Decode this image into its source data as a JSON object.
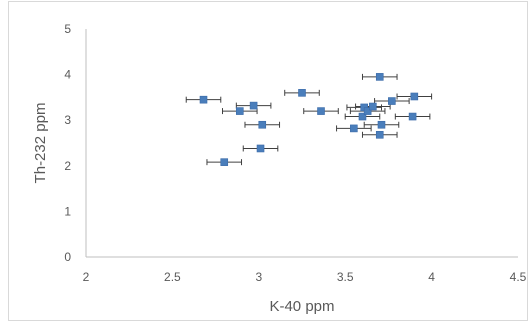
{
  "chart_data": {
    "type": "scatter",
    "title": "",
    "xlabel": "K-40 ppm",
    "ylabel": "Th-232 ppm",
    "xlim": [
      2,
      4.5
    ],
    "ylim": [
      0,
      5
    ],
    "xticks": [
      "2",
      "2.5",
      "3",
      "3.5",
      "4",
      "4.5"
    ],
    "yticks": [
      "0",
      "1",
      "2",
      "3",
      "4",
      "5"
    ],
    "grid": false,
    "legend": "none",
    "error_bars": "horizontal",
    "x_error": 0.1,
    "series": [
      {
        "color": "#4a7ebb",
        "points": [
          {
            "x": 2.68,
            "y": 3.45
          },
          {
            "x": 2.89,
            "y": 3.2
          },
          {
            "x": 2.97,
            "y": 3.32
          },
          {
            "x": 3.02,
            "y": 2.9
          },
          {
            "x": 2.8,
            "y": 2.08
          },
          {
            "x": 3.01,
            "y": 2.38
          },
          {
            "x": 3.25,
            "y": 3.6
          },
          {
            "x": 3.36,
            "y": 3.2
          },
          {
            "x": 3.55,
            "y": 2.82
          },
          {
            "x": 3.6,
            "y": 3.08
          },
          {
            "x": 3.61,
            "y": 3.28
          },
          {
            "x": 3.63,
            "y": 3.2
          },
          {
            "x": 3.66,
            "y": 3.3
          },
          {
            "x": 3.7,
            "y": 3.95
          },
          {
            "x": 3.71,
            "y": 2.9
          },
          {
            "x": 3.7,
            "y": 2.68
          },
          {
            "x": 3.77,
            "y": 3.42
          },
          {
            "x": 3.89,
            "y": 3.08
          },
          {
            "x": 3.9,
            "y": 3.52
          }
        ]
      }
    ]
  }
}
